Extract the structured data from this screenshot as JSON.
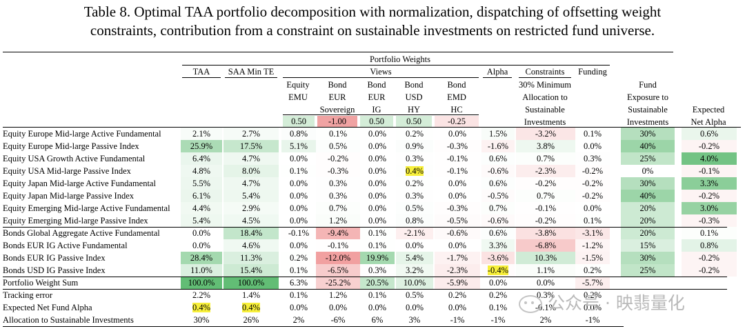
{
  "title": {
    "line1": "Table 8. Optimal TAA portfolio decomposition with normalization, dispatching of offsetting weight",
    "line2": "constraints, contribution from a constraint on sustainable investments on restricted fund universe."
  },
  "headers": {
    "portfolio_weights": "Portfolio Weights",
    "taa": "TAA",
    "saa_min_te": "SAA Min TE",
    "views": "Views",
    "alpha": "Alpha",
    "constraints": "Constraints",
    "funding": "Funding",
    "equity_emu": [
      "Equity",
      "EMU"
    ],
    "bond_eur_sov": [
      "Bond",
      "EUR",
      "Sovereign"
    ],
    "bond_eur_ig": [
      "Bond",
      "EUR",
      "IG"
    ],
    "bond_usd_hy": [
      "Bond",
      "USD",
      "HY"
    ],
    "bond_emd_hc": [
      "Bond",
      "EMD",
      "HC"
    ],
    "constraint_desc": [
      "30% Minimum",
      "Allocation to",
      "Sustainable",
      "Investments"
    ],
    "fund_exposure": [
      "Fund",
      "Exposure to",
      "Sustainable",
      "Investments"
    ],
    "expected_alpha": [
      "Expected",
      "Net Alpha"
    ]
  },
  "view_values": [
    "0.50",
    "-1.00",
    "0.50",
    "0.50",
    "-0.25"
  ],
  "rows": [
    {
      "label": "Equity Europe Mid-large Active Fundamental",
      "cells": [
        "2.1%",
        "2.7%",
        "0.8%",
        "0.1%",
        "0.0%",
        "0.2%",
        "0.0%",
        "1.5%",
        "-3.2%",
        "0.1%",
        "30%",
        "0.6%"
      ]
    },
    {
      "label": "Equity Europe Mid-large Passive Index",
      "cells": [
        "25.9%",
        "17.5%",
        "5.1%",
        "0.5%",
        "0.0%",
        "0.9%",
        "-0.3%",
        "-1.6%",
        "3.8%",
        "0.0%",
        "40%",
        "-0.2%"
      ]
    },
    {
      "label": "Equity USA Growth Active Fundamental",
      "cells": [
        "6.4%",
        "4.7%",
        "0.0%",
        "-0.2%",
        "0.0%",
        "0.3%",
        "-0.1%",
        "0.6%",
        "0.7%",
        "0.3%",
        "25%",
        "4.0%"
      ]
    },
    {
      "label": "Equity USA Mid-large Passive Index",
      "cells": [
        "4.8%",
        "8.0%",
        "0.1%",
        "-0.3%",
        "0.0%",
        "0.4%",
        "-0.1%",
        "-0.6%",
        "-2.3%",
        "-0.2%",
        "0%",
        "-0.1%"
      ]
    },
    {
      "label": "Equity Japan Mid-large Active Fundamental",
      "cells": [
        "5.5%",
        "4.7%",
        "0.0%",
        "0.3%",
        "0.0%",
        "0.2%",
        "0.0%",
        "0.6%",
        "-0.2%",
        "-0.2%",
        "30%",
        "3.3%"
      ]
    },
    {
      "label": "Equity Japan Mid-large Passive Index",
      "cells": [
        "6.1%",
        "5.4%",
        "0.0%",
        "0.3%",
        "0.0%",
        "0.3%",
        "0.0%",
        "-0.5%",
        "0.7%",
        "-0.2%",
        "40%",
        "-0.2%"
      ]
    },
    {
      "label": "Equity Emerging Mid-large Active Fundamental",
      "cells": [
        "4.4%",
        "2.9%",
        "0.0%",
        "0.7%",
        "0.0%",
        "0.5%",
        "-0.3%",
        "0.7%",
        "-0.1%",
        "0.0%",
        "20%",
        "3.0%"
      ]
    },
    {
      "label": "Equity Emerging Mid-large Passive Index",
      "cells": [
        "5.4%",
        "4.5%",
        "0.0%",
        "1.2%",
        "0.0%",
        "0.8%",
        "-0.5%",
        "-0.6%",
        "-0.2%",
        "0.1%",
        "20%",
        "-0.3%"
      ]
    },
    {
      "label": "Bonds Global Aggregate Active Fundamental",
      "cells": [
        "0.0%",
        "18.4%",
        "-0.1%",
        "-9.4%",
        "0.1%",
        "-2.1%",
        "-0.6%",
        "0.6%",
        "-3.8%",
        "-3.1%",
        "20%",
        "0.1%"
      ]
    },
    {
      "label": "Bonds EUR IG Active Fundamental",
      "cells": [
        "0.0%",
        "4.6%",
        "0.0%",
        "-0.1%",
        "0.1%",
        "0.0%",
        "0.0%",
        "3.3%",
        "-6.8%",
        "-1.2%",
        "15%",
        "0.8%"
      ]
    },
    {
      "label": "Bonds EUR IG Passive Index",
      "cells": [
        "28.4%",
        "11.3%",
        "0.2%",
        "-12.0%",
        "19.9%",
        "5.4%",
        "-1.7%",
        "-3.6%",
        "10.3%",
        "-1.5%",
        "30%",
        "-0.2%"
      ]
    },
    {
      "label": "Bonds USD IG Passive Index",
      "cells": [
        "11.0%",
        "15.4%",
        "0.1%",
        "-6.5%",
        "0.3%",
        "3.2%",
        "-2.3%",
        "-0.4%",
        "1.1%",
        "0.2%",
        "25%",
        "-0.2%"
      ]
    },
    {
      "label": "Portfolio Weight Sum",
      "cells": [
        "100.0%",
        "100.0%",
        "6.3%",
        "-25.2%",
        "20.5%",
        "10.0%",
        "-5.9%",
        "0.0%",
        "0.0%",
        "-5.7%",
        "",
        ""
      ]
    },
    {
      "label": "Tracking error",
      "cells": [
        "2.2%",
        "1.4%",
        "0.1%",
        "1.2%",
        "0.1%",
        "0.5%",
        "0.2%",
        "0.2%",
        "0.3%",
        "0.2%",
        "",
        ""
      ]
    },
    {
      "label": "Expected Net Fund Alpha",
      "cells": [
        "0.4%",
        "0.4%",
        "0.0%",
        "0.0%",
        "0.0%",
        "0.0%",
        "0.0%",
        "0.1%",
        "-0.1%",
        "0.0%",
        "",
        ""
      ]
    },
    {
      "label": "Allocation to Sustainable Investments",
      "cells": [
        "30%",
        "26%",
        "2%",
        "-6%",
        "6%",
        "3%",
        "-1%",
        "-1%",
        "2%",
        "-1%",
        "",
        ""
      ]
    }
  ],
  "watermark": "公众号 · 映翡量化"
}
